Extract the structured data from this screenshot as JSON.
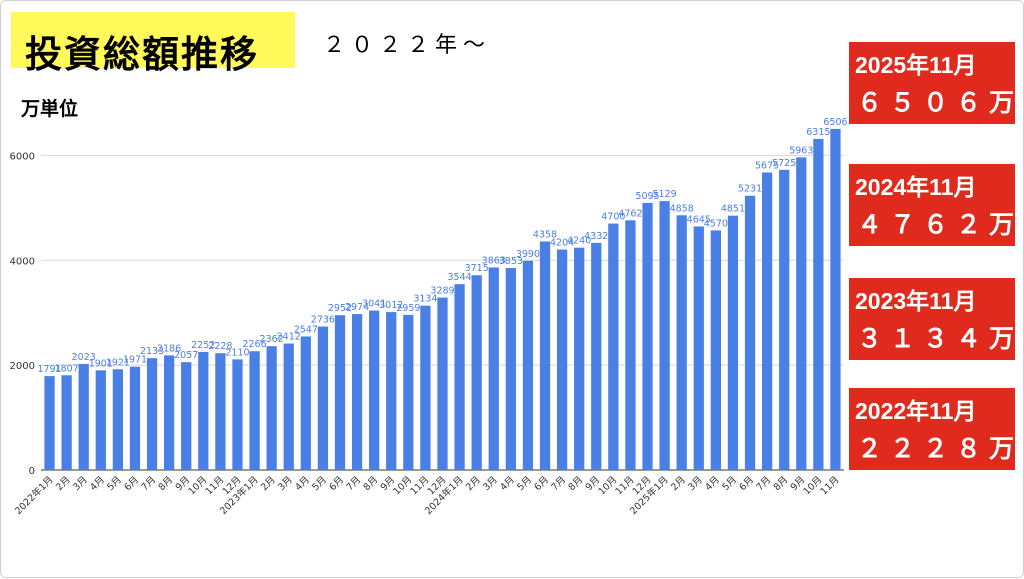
{
  "header": {
    "title": "投資総額推移",
    "subtitle": "２０２２年〜",
    "unit_label": "万単位"
  },
  "callouts": [
    {
      "line1": "2025年11月",
      "line2": "６５０６万"
    },
    {
      "line1": "2024年11月",
      "line2": "４７６２万"
    },
    {
      "line1": "2023年11月",
      "line2": "３１３４万"
    },
    {
      "line1": "2022年11月",
      "line2": "２２２８万"
    }
  ],
  "chart_data": {
    "type": "bar",
    "categories": [
      "2022年1月",
      "2月",
      "3月",
      "4月",
      "5月",
      "6月",
      "7月",
      "8月",
      "9月",
      "10月",
      "11月",
      "12月",
      "2023年1月",
      "2月",
      "3月",
      "4月",
      "5月",
      "6月",
      "7月",
      "8月",
      "9月",
      "10月",
      "11月",
      "12月",
      "2024年1月",
      "2月",
      "3月",
      "4月",
      "5月",
      "6月",
      "7月",
      "8月",
      "9月",
      "10月",
      "11月",
      "12月",
      "2025年1月",
      "2月",
      "3月",
      "4月",
      "5月",
      "6月",
      "7月",
      "8月",
      "9月",
      "10月",
      "11月"
    ],
    "values": [
      1791,
      1807,
      2023,
      1901,
      1921,
      1971,
      2133,
      2186,
      2057,
      2252,
      2228,
      2110,
      2266,
      2362,
      2412,
      2547,
      2736,
      2952,
      2974,
      3041,
      3012,
      2959,
      3134,
      3289,
      3544,
      3715,
      3863,
      3853,
      3990,
      4358,
      4204,
      4240,
      4332,
      4700,
      4762,
      5095,
      5129,
      4858,
      4645,
      4570,
      4851,
      5231,
      5675,
      5725,
      5963,
      6315,
      6506
    ],
    "yticks": [
      0,
      2000,
      4000,
      6000
    ],
    "ylim": [
      0,
      7000
    ],
    "bar_color": "#4a7fe6",
    "label_color": "#4a7fe6",
    "grid": true
  },
  "colors": {
    "title_bg": "#fff95a",
    "callout_bg": "#e02a1e"
  }
}
